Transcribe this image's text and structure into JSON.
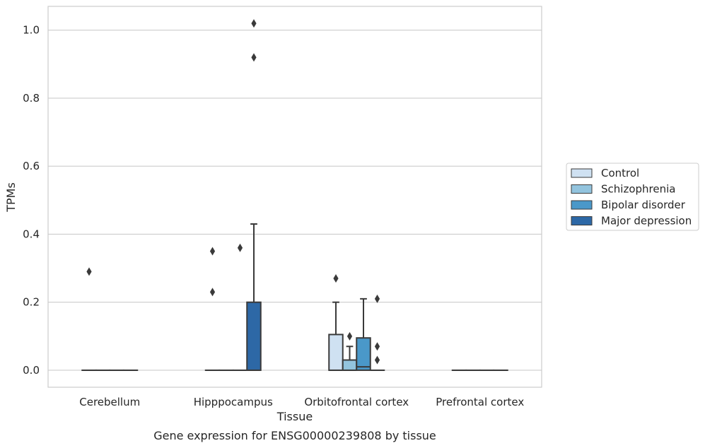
{
  "chart_data": {
    "type": "boxplot",
    "xlabel": "Tissue",
    "ylabel": "TPMs",
    "caption": "Gene expression for ENSG00000239808 by tissue",
    "ylim": [
      -0.05,
      1.07
    ],
    "yticks": [
      0.0,
      0.2,
      0.4,
      0.6,
      0.8,
      1.0
    ],
    "ytick_labels": [
      "0.0",
      "0.2",
      "0.4",
      "0.6",
      "0.8",
      "1.0"
    ],
    "grid": "horizontal",
    "legend_position": "center-right",
    "categories": [
      "Cerebellum",
      "Hipppocampus",
      "Orbitofrontal cortex",
      "Prefrontal cortex"
    ],
    "series": [
      {
        "name": "Control",
        "color": "#cfe1f2",
        "boxes": [
          {
            "category": "Cerebellum",
            "q1": 0,
            "median": 0,
            "q3": 0,
            "whislo": 0,
            "whishi": 0,
            "fliers": [
              0.29
            ]
          },
          {
            "category": "Hipppocampus",
            "q1": 0,
            "median": 0,
            "q3": 0,
            "whislo": 0,
            "whishi": 0,
            "fliers": [
              0.35,
              0.23
            ]
          },
          {
            "category": "Orbitofrontal cortex",
            "q1": 0,
            "median": 0,
            "q3": 0.105,
            "whislo": 0,
            "whishi": 0.2,
            "fliers": [
              0.27
            ]
          },
          {
            "category": "Prefrontal cortex",
            "q1": 0,
            "median": 0,
            "q3": 0,
            "whislo": 0,
            "whishi": 0,
            "fliers": []
          }
        ]
      },
      {
        "name": "Schizophrenia",
        "color": "#93c4de",
        "boxes": [
          {
            "category": "Cerebellum",
            "q1": 0,
            "median": 0,
            "q3": 0,
            "whislo": 0,
            "whishi": 0,
            "fliers": []
          },
          {
            "category": "Hipppocampus",
            "q1": 0,
            "median": 0,
            "q3": 0,
            "whislo": 0,
            "whishi": 0,
            "fliers": []
          },
          {
            "category": "Orbitofrontal cortex",
            "q1": 0,
            "median": 0,
            "q3": 0.03,
            "whislo": 0,
            "whishi": 0.07,
            "fliers": [
              0.1
            ]
          },
          {
            "category": "Prefrontal cortex",
            "q1": 0,
            "median": 0,
            "q3": 0,
            "whislo": 0,
            "whishi": 0,
            "fliers": []
          }
        ]
      },
      {
        "name": "Bipolar disorder",
        "color": "#4a98c9",
        "boxes": [
          {
            "category": "Cerebellum",
            "q1": 0,
            "median": 0,
            "q3": 0,
            "whislo": 0,
            "whishi": 0,
            "fliers": []
          },
          {
            "category": "Hipppocampus",
            "q1": 0,
            "median": 0,
            "q3": 0,
            "whislo": 0,
            "whishi": 0,
            "fliers": [
              0.36
            ]
          },
          {
            "category": "Orbitofrontal cortex",
            "q1": 0,
            "median": 0.01,
            "q3": 0.095,
            "whislo": 0,
            "whishi": 0.21,
            "fliers": []
          },
          {
            "category": "Prefrontal cortex",
            "q1": 0,
            "median": 0,
            "q3": 0,
            "whislo": 0,
            "whishi": 0,
            "fliers": []
          }
        ]
      },
      {
        "name": "Major depression",
        "color": "#2d68a6",
        "boxes": [
          {
            "category": "Cerebellum",
            "q1": 0,
            "median": 0,
            "q3": 0,
            "whislo": 0,
            "whishi": 0,
            "fliers": []
          },
          {
            "category": "Hipppocampus",
            "q1": 0,
            "median": 0,
            "q3": 0.2,
            "whislo": 0,
            "whishi": 0.43,
            "fliers": [
              1.02,
              0.92
            ]
          },
          {
            "category": "Orbitofrontal cortex",
            "q1": 0,
            "median": 0,
            "q3": 0,
            "whislo": 0,
            "whishi": 0,
            "fliers": [
              0.21,
              0.07,
              0.03
            ]
          },
          {
            "category": "Prefrontal cortex",
            "q1": 0,
            "median": 0,
            "q3": 0,
            "whislo": 0,
            "whishi": 0,
            "fliers": []
          }
        ]
      }
    ]
  }
}
